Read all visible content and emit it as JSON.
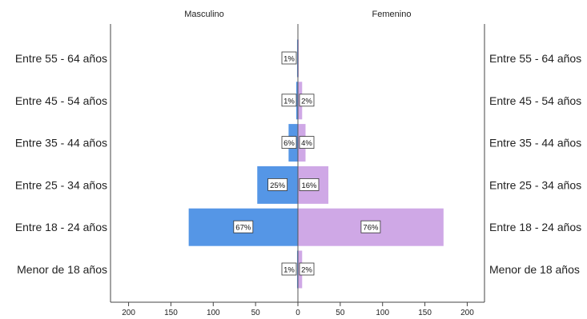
{
  "chart_data": {
    "type": "bar",
    "orientation": "population-pyramid",
    "panels": [
      "Masculino",
      "Femenino"
    ],
    "categories": [
      "Entre 55 - 64 años",
      "Entre 45 - 54 años",
      "Entre 35 - 44 años",
      "Entre 25 - 34 años",
      "Entre 18 - 24 años",
      "Menor de 18 años"
    ],
    "series": [
      {
        "name": "Masculino",
        "color": "#5596e6",
        "values": [
          1,
          2,
          11,
          48,
          129,
          1
        ],
        "labels": [
          "1%",
          "1%",
          "6%",
          "25%",
          "67%",
          "1%"
        ]
      },
      {
        "name": "Femenino",
        "color": "#cfa8e6",
        "values": [
          1,
          5,
          9,
          36,
          172,
          5
        ],
        "labels": [
          "",
          "2%",
          "4%",
          "16%",
          "76%",
          "2%"
        ]
      }
    ],
    "xticks_left": [
      200,
      150,
      100,
      50,
      0
    ],
    "xticks_right": [
      0,
      50,
      100,
      150,
      200
    ],
    "xlim": [
      0,
      200
    ],
    "grid": false
  }
}
